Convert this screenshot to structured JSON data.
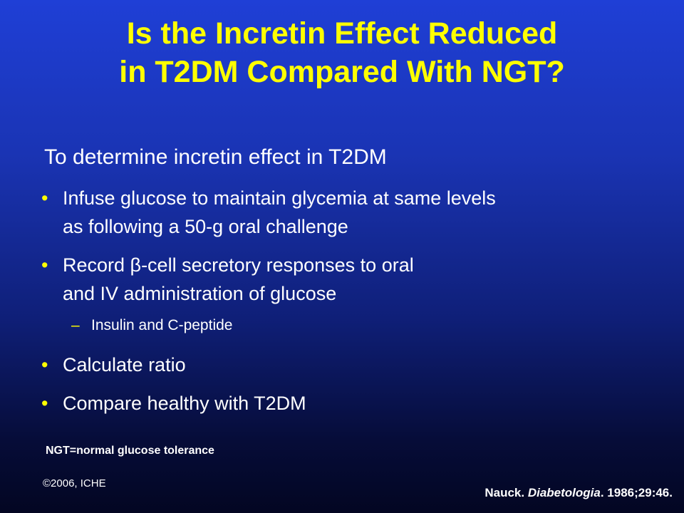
{
  "slide": {
    "title_line1": "Is the Incretin Effect Reduced",
    "title_line2": "in T2DM Compared With NGT?",
    "intro": "To determine incretin effect in T2DM",
    "bullet_symbol": "•",
    "sub_symbol": "–",
    "bullets": [
      {
        "line1": "Infuse glucose to maintain glycemia at same levels",
        "line2": "as following a 50-g oral challenge"
      },
      {
        "line1": "Record β-cell secretory responses to oral",
        "line2": "and IV administration of glucose"
      },
      {
        "line1": "Calculate ratio"
      },
      {
        "line1": "Compare healthy with T2DM"
      }
    ],
    "sub_bullet": "Insulin and C-peptide",
    "footnote": "NGT=normal glucose tolerance",
    "copyright": "©2006, ICHE",
    "citation": {
      "author": "Nauck. ",
      "journal": "Diabetologia",
      "details": ". 1986;29:46."
    }
  },
  "colors": {
    "title": "#ffff00",
    "text": "#ffffff",
    "background_top": "#1f3fd6",
    "background_bottom": "#030622"
  }
}
